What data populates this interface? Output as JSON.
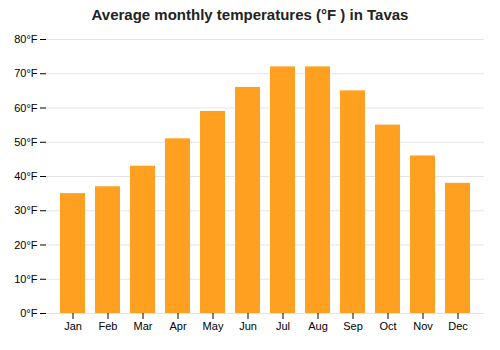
{
  "chart_data": {
    "type": "bar",
    "title": "Average monthly temperatures (°F ) in Tavas",
    "categories": [
      "Jan",
      "Feb",
      "Mar",
      "Apr",
      "May",
      "Jun",
      "Jul",
      "Aug",
      "Sep",
      "Oct",
      "Nov",
      "Dec"
    ],
    "values": [
      35,
      37,
      43,
      51,
      59,
      66,
      72,
      72,
      65,
      55,
      46,
      38
    ],
    "color": "#FFA020",
    "ylim": [
      0,
      80
    ],
    "yticks": [
      {
        "value": 0,
        "label": "0°F"
      },
      {
        "value": 10,
        "label": "10°F"
      },
      {
        "value": 20,
        "label": "20°F"
      },
      {
        "value": 30,
        "label": "30°F"
      },
      {
        "value": 40,
        "label": "40°F"
      },
      {
        "value": 50,
        "label": "50°F"
      },
      {
        "value": 60,
        "label": "60°F"
      },
      {
        "value": 70,
        "label": "70°F"
      },
      {
        "value": 80,
        "label": "80°F"
      }
    ],
    "grid": true
  }
}
